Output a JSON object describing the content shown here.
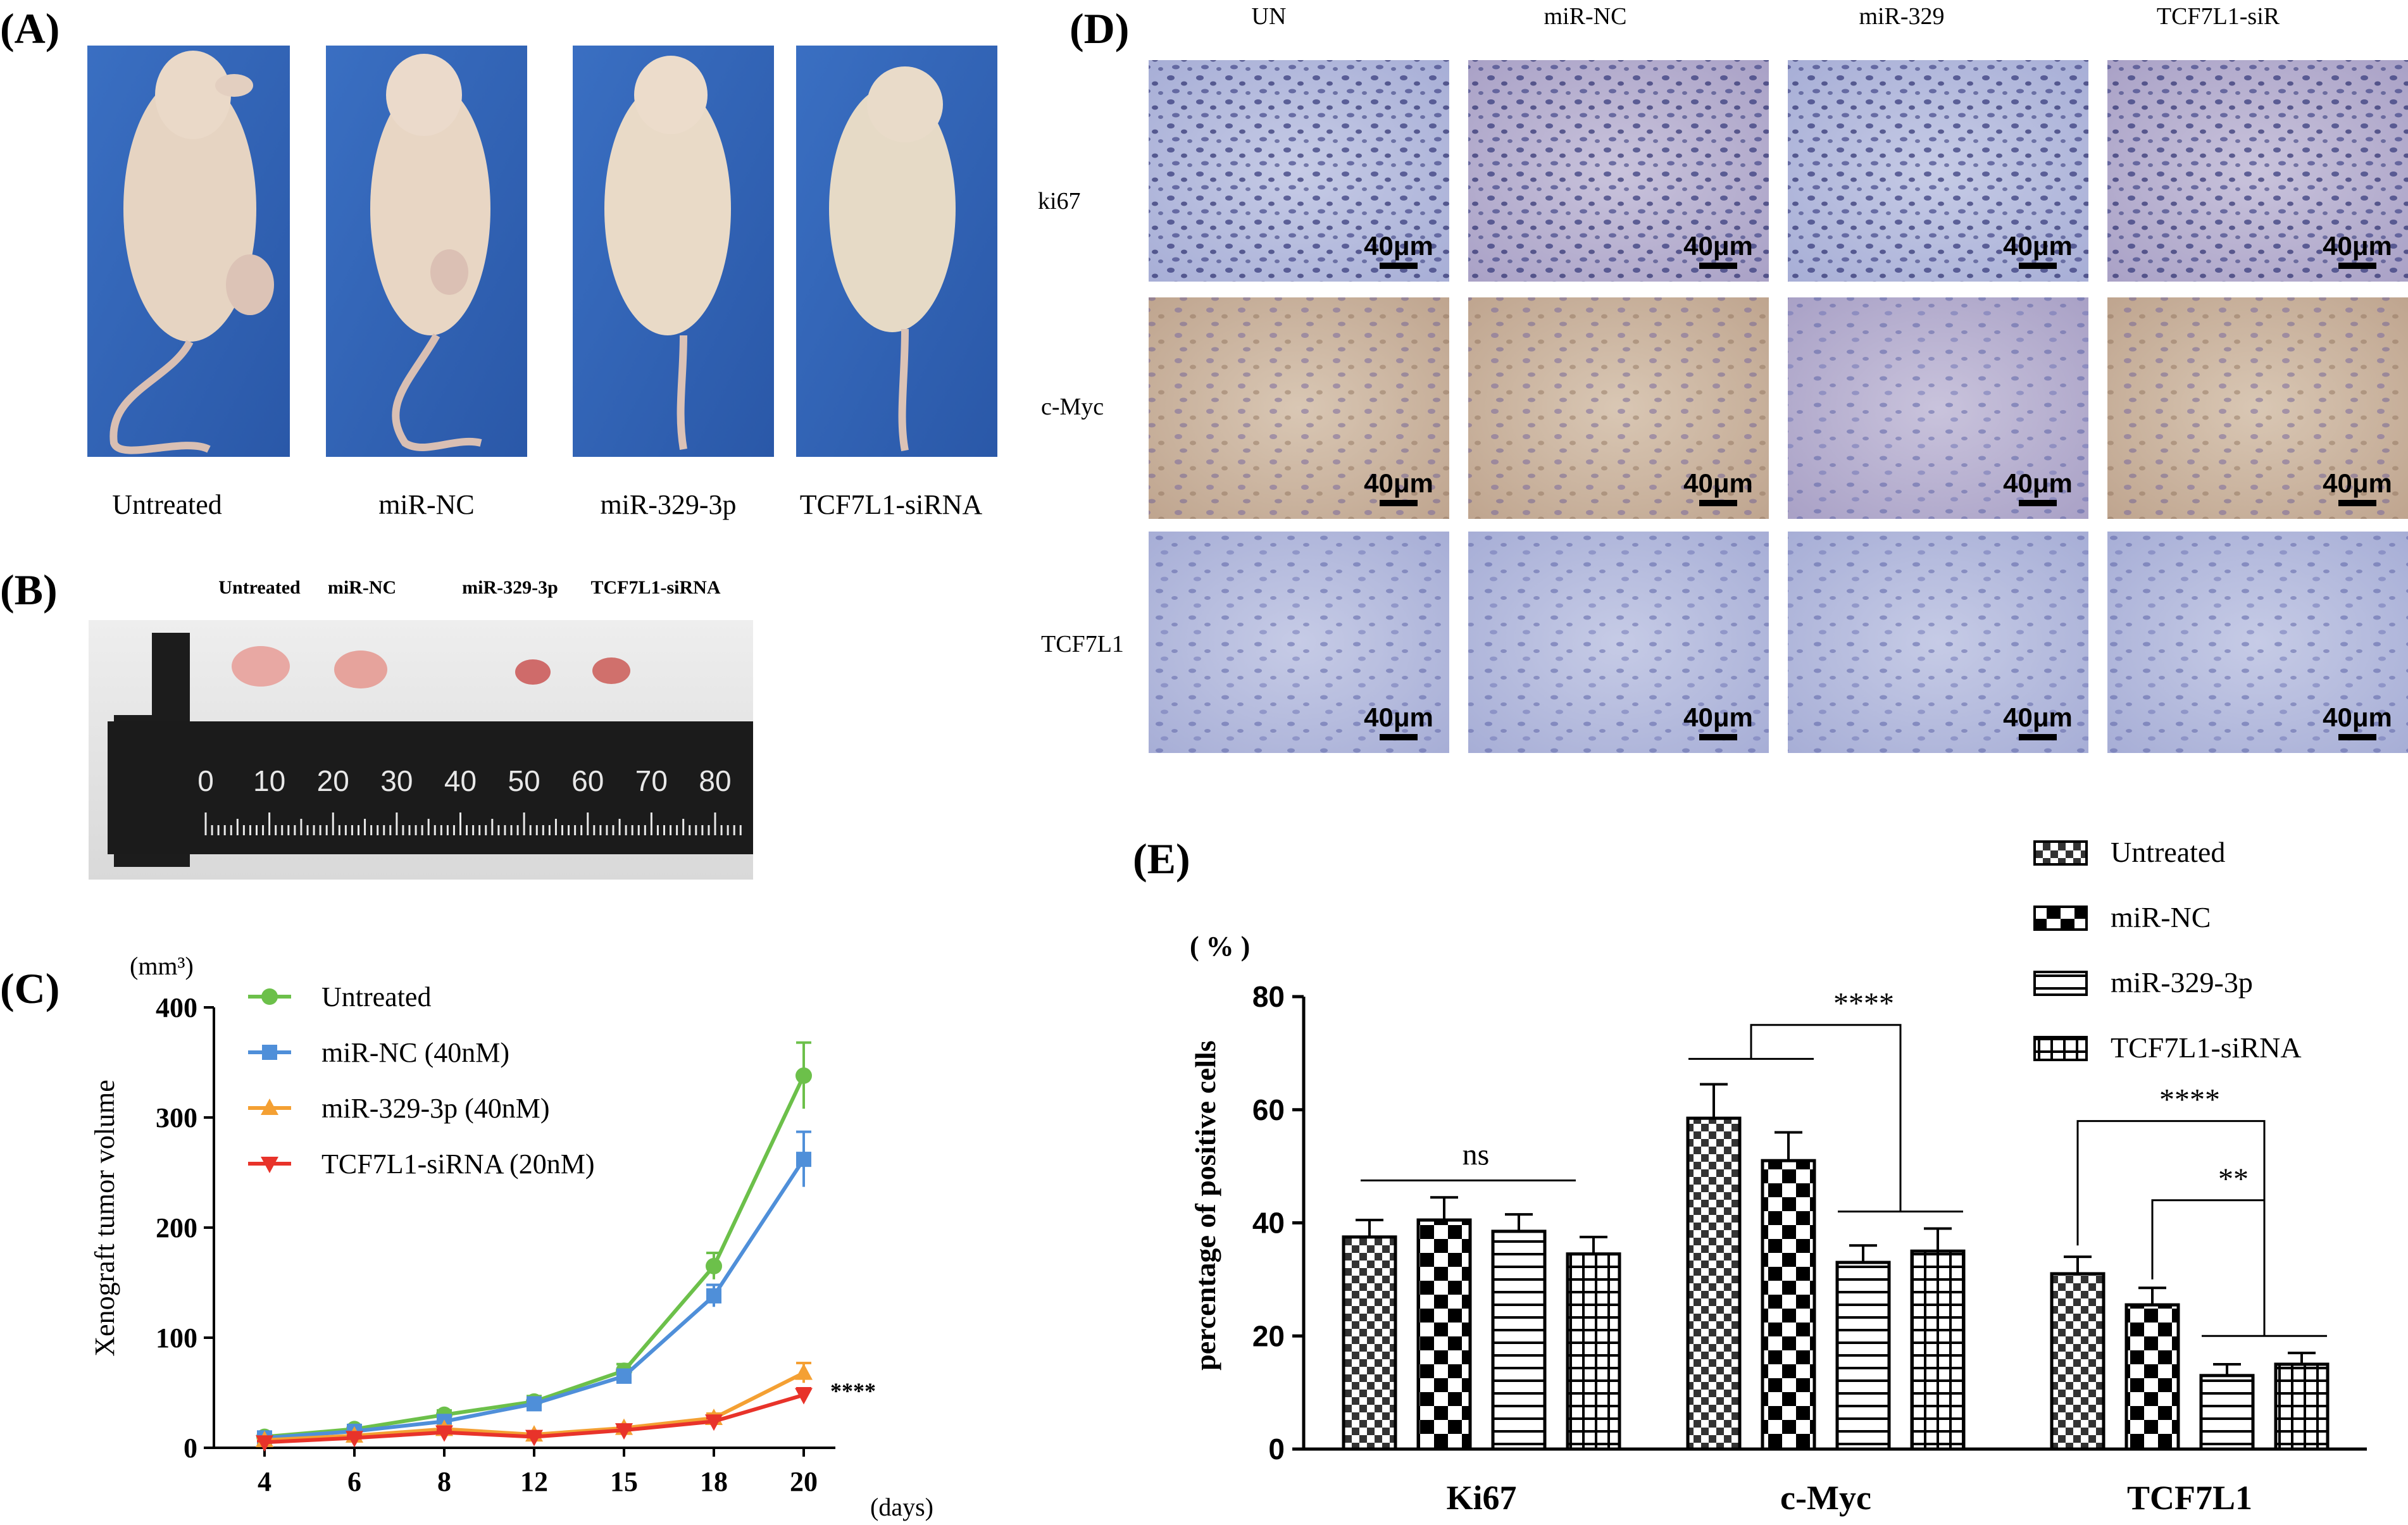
{
  "colors": {
    "untreated": "#6cc04a",
    "mir_nc": "#4f8fd9",
    "mir329": "#f4a033",
    "tcf7l1": "#e8332a",
    "backdrop": "#2f63b8",
    "skin": "#e8d6c4"
  },
  "panel_a": {
    "label": "(A)",
    "captions": [
      "Untreated",
      "miR-NC",
      "miR-329-3p",
      "TCF7L1-siRNA"
    ]
  },
  "panel_b": {
    "label": "(B)",
    "captions": [
      "Untreated",
      "miR-NC",
      "miR-329-3p",
      "TCF7L1-siRNA"
    ],
    "ruler_ticks": [
      "0",
      "10",
      "20",
      "30",
      "40",
      "50",
      "60",
      "70",
      "80"
    ]
  },
  "panel_c": {
    "label": "(C)",
    "unit": "(mm³)",
    "ylabel": "Xenograft tumor volume",
    "xunit": "(days)",
    "significance": "****"
  },
  "panel_d": {
    "label": "(D)",
    "columns": [
      "UN",
      "miR-NC",
      "miR-329",
      "TCF7L1-siR"
    ],
    "rows": [
      "ki67",
      "c-Myc",
      "TCF7L1"
    ],
    "scale_bar": "40μm"
  },
  "panel_e": {
    "label": "(E)",
    "unit": "( % )",
    "ylabel": "percentage of positive cells",
    "ns_label": "ns",
    "sig_myc": "****",
    "sig_tcf_a": "****",
    "sig_tcf_b": "**"
  },
  "chart_data": [
    {
      "type": "line",
      "title": "",
      "xlabel": "(days)",
      "ylabel": "Xenograft tumor volume",
      "ylim": [
        0,
        400
      ],
      "x": [
        4,
        6,
        8,
        12,
        15,
        18,
        20
      ],
      "yticks": [
        0,
        100,
        200,
        300,
        400
      ],
      "series": [
        {
          "name": "Untreated",
          "values": [
            10,
            17,
            30,
            42,
            70,
            165,
            338
          ],
          "errors": [
            2,
            3,
            4,
            5,
            6,
            12,
            30
          ]
        },
        {
          "name": "miR-NC (40nM)",
          "values": [
            9,
            15,
            24,
            40,
            65,
            138,
            262
          ],
          "errors": [
            2,
            3,
            4,
            5,
            6,
            10,
            25
          ]
        },
        {
          "name": "miR-329-3p (40nM)",
          "values": [
            7,
            11,
            17,
            12,
            18,
            27,
            68
          ],
          "errors": [
            1,
            2,
            3,
            2,
            3,
            4,
            9
          ]
        },
        {
          "name": "TCF7L1-siRNA (20nM)",
          "values": [
            5,
            9,
            14,
            10,
            16,
            24,
            48
          ],
          "errors": [
            1,
            2,
            2,
            2,
            3,
            3,
            6
          ]
        }
      ],
      "legend": "top-left"
    },
    {
      "type": "bar",
      "title": "",
      "xlabel": "",
      "ylabel": "percentage of positive cells",
      "ylim": [
        0,
        80
      ],
      "yticks": [
        0,
        20,
        40,
        60,
        80
      ],
      "categories": [
        "Ki67",
        "c-Myc",
        "TCF7L1"
      ],
      "series": [
        {
          "name": "Untreated",
          "values": [
            37.5,
            58.5,
            31
          ],
          "errors": [
            3,
            6,
            3
          ]
        },
        {
          "name": "miR-NC",
          "values": [
            40.5,
            51,
            25.5
          ],
          "errors": [
            4,
            5,
            3
          ]
        },
        {
          "name": "miR-329-3p",
          "values": [
            38.5,
            33,
            13
          ],
          "errors": [
            3,
            3,
            2
          ]
        },
        {
          "name": "TCF7L1-siRNA",
          "values": [
            34.5,
            35,
            15
          ],
          "errors": [
            3,
            4,
            2
          ]
        }
      ],
      "legend": "top-right"
    }
  ]
}
